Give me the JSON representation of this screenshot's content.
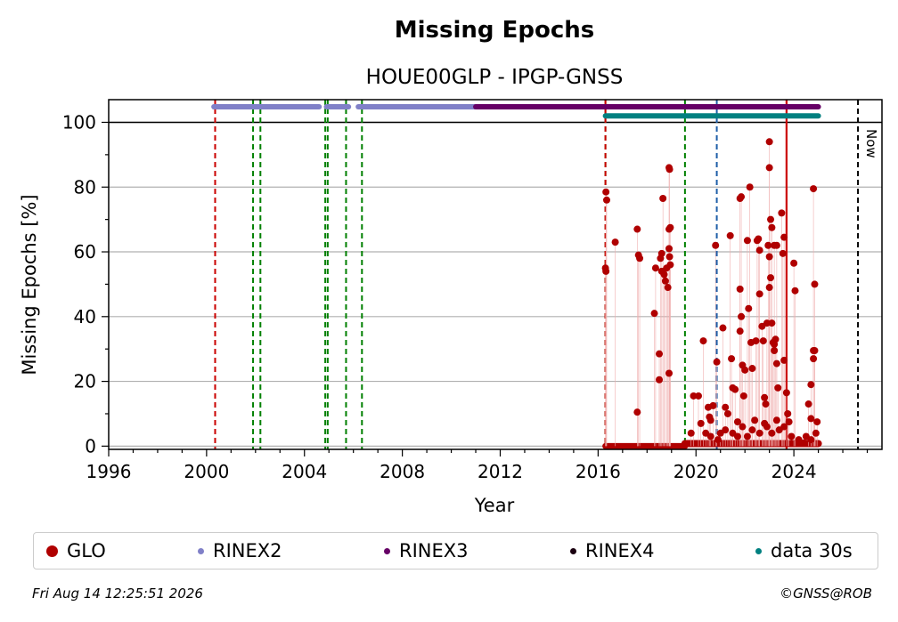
{
  "chart_data": {
    "type": "scatter",
    "title": "Missing Epochs",
    "subtitle": "HOUE00GLP - IPGP-GNSS",
    "xlabel": "Year",
    "ylabel": "Missing Epochs [%]",
    "xlim": [
      1996,
      2027.6
    ],
    "ylim": [
      -1,
      107
    ],
    "x_ticks": [
      "1996",
      "2000",
      "2004",
      "2008",
      "2012",
      "2016",
      "2020",
      "2024"
    ],
    "y_ticks": [
      "0",
      "20",
      "40",
      "60",
      "80",
      "100"
    ],
    "grid": "horizontal",
    "legend_placement": "bottom",
    "now_label": "Now",
    "now_year": 2026.62,
    "reference_line": 100,
    "event_lines": [
      {
        "x": 2000.35,
        "color": "#008000"
      },
      {
        "x": 2000.35,
        "color": "#cc0000"
      },
      {
        "x": 2001.9,
        "color": "#008000"
      },
      {
        "x": 2002.2,
        "color": "#008000"
      },
      {
        "x": 2004.85,
        "color": "#008000"
      },
      {
        "x": 2004.95,
        "color": "#008000"
      },
      {
        "x": 2005.7,
        "color": "#008000"
      },
      {
        "x": 2006.35,
        "color": "#008000"
      },
      {
        "x": 2016.3,
        "color": "#008000"
      },
      {
        "x": 2016.3,
        "color": "#cc0000"
      },
      {
        "x": 2019.55,
        "color": "#008000"
      },
      {
        "x": 2020.85,
        "color": "#1f5fa8"
      }
    ],
    "solid_event_lines": [
      {
        "x": 2023.7,
        "color": "#cc0000"
      }
    ],
    "availability_bars": [
      {
        "name": "RINEX2",
        "y": 104.8,
        "color": "#8080c8",
        "segments": [
          [
            2000.3,
            2004.6
          ],
          [
            2004.9,
            2005.8
          ],
          [
            2006.2,
            2011.0
          ]
        ]
      },
      {
        "name": "RINEX3",
        "y": 104.8,
        "color": "#660066",
        "segments": [
          [
            2011.0,
            2025.0
          ]
        ]
      },
      {
        "name": "data 30s",
        "y": 102.0,
        "color": "#008080",
        "segments": [
          [
            2016.3,
            2025.0
          ]
        ]
      }
    ],
    "series": [
      {
        "name": "GLO",
        "color": "#b00000",
        "points": [
          [
            2016.32,
            78.5
          ],
          [
            2016.35,
            76
          ],
          [
            2016.3,
            55
          ],
          [
            2016.32,
            54
          ],
          [
            2016.7,
            63
          ],
          [
            2017.6,
            67
          ],
          [
            2017.65,
            59
          ],
          [
            2017.7,
            58
          ],
          [
            2017.6,
            10.5
          ],
          [
            2018.3,
            41
          ],
          [
            2018.35,
            55
          ],
          [
            2018.5,
            28.5
          ],
          [
            2018.5,
            20.5
          ],
          [
            2018.55,
            58
          ],
          [
            2018.6,
            59.5
          ],
          [
            2018.6,
            54
          ],
          [
            2018.65,
            76.5
          ],
          [
            2018.7,
            53
          ],
          [
            2018.75,
            51
          ],
          [
            2018.8,
            55
          ],
          [
            2018.85,
            49
          ],
          [
            2018.9,
            86
          ],
          [
            2018.92,
            85.5
          ],
          [
            2018.9,
            67
          ],
          [
            2018.95,
            67.5
          ],
          [
            2018.9,
            61
          ],
          [
            2018.92,
            58.5
          ],
          [
            2018.95,
            56
          ],
          [
            2018.9,
            22.5
          ],
          [
            2019.8,
            4
          ],
          [
            2019.9,
            15.5
          ],
          [
            2020.1,
            15.5
          ],
          [
            2020.2,
            7
          ],
          [
            2020.3,
            32.5
          ],
          [
            2020.4,
            4
          ],
          [
            2020.5,
            12
          ],
          [
            2020.55,
            9
          ],
          [
            2020.6,
            8
          ],
          [
            2020.7,
            12.5
          ],
          [
            2020.8,
            62
          ],
          [
            2020.85,
            26
          ],
          [
            2021.0,
            4
          ],
          [
            2021.1,
            36.5
          ],
          [
            2021.2,
            12
          ],
          [
            2021.3,
            10
          ],
          [
            2021.4,
            65
          ],
          [
            2021.45,
            27
          ],
          [
            2021.5,
            18
          ],
          [
            2021.6,
            17.5
          ],
          [
            2021.7,
            7.5
          ],
          [
            2021.8,
            76.5
          ],
          [
            2021.85,
            77
          ],
          [
            2021.8,
            48.5
          ],
          [
            2021.85,
            40
          ],
          [
            2021.8,
            35.5
          ],
          [
            2021.9,
            25
          ],
          [
            2021.95,
            15.5
          ],
          [
            2022.0,
            23.5
          ],
          [
            2022.1,
            63.5
          ],
          [
            2022.15,
            42.5
          ],
          [
            2022.2,
            80
          ],
          [
            2022.25,
            32
          ],
          [
            2022.3,
            24
          ],
          [
            2022.4,
            8
          ],
          [
            2022.45,
            32.5
          ],
          [
            2022.5,
            63.5
          ],
          [
            2022.55,
            64
          ],
          [
            2022.6,
            60.5
          ],
          [
            2022.6,
            47
          ],
          [
            2022.7,
            37
          ],
          [
            2022.75,
            32.5
          ],
          [
            2022.8,
            15
          ],
          [
            2022.85,
            13
          ],
          [
            2022.9,
            38
          ],
          [
            2022.95,
            62
          ],
          [
            2023.0,
            94
          ],
          [
            2023.0,
            86
          ],
          [
            2023.05,
            70
          ],
          [
            2023.1,
            67.5
          ],
          [
            2023.0,
            58.5
          ],
          [
            2023.05,
            52
          ],
          [
            2023.0,
            49
          ],
          [
            2023.1,
            38
          ],
          [
            2023.15,
            32
          ],
          [
            2023.2,
            31.5
          ],
          [
            2023.2,
            29.5
          ],
          [
            2023.25,
            33
          ],
          [
            2023.3,
            25.5
          ],
          [
            2023.35,
            18
          ],
          [
            2023.2,
            62
          ],
          [
            2023.3,
            62
          ],
          [
            2023.5,
            72
          ],
          [
            2023.6,
            64.5
          ],
          [
            2023.55,
            59.5
          ],
          [
            2023.6,
            26.5
          ],
          [
            2023.7,
            16.5
          ],
          [
            2023.75,
            10
          ],
          [
            2023.8,
            7.5
          ],
          [
            2024.05,
            48
          ],
          [
            2024.0,
            56.5
          ],
          [
            2024.8,
            79.5
          ],
          [
            2024.85,
            50
          ],
          [
            2024.8,
            29.5
          ],
          [
            2024.85,
            29.5
          ],
          [
            2024.8,
            27
          ],
          [
            2024.7,
            19
          ],
          [
            2024.6,
            13
          ],
          [
            2024.7,
            8.5
          ],
          [
            2024.95,
            7.5
          ],
          [
            2021.5,
            4
          ],
          [
            2021.7,
            3
          ],
          [
            2022.3,
            5
          ],
          [
            2022.6,
            4
          ],
          [
            2022.9,
            6
          ],
          [
            2023.1,
            4
          ],
          [
            2023.4,
            5
          ],
          [
            2023.9,
            3
          ],
          [
            2024.2,
            2
          ],
          [
            2024.5,
            3
          ],
          [
            2024.9,
            4
          ],
          [
            2020.6,
            3
          ],
          [
            2020.9,
            2
          ],
          [
            2021.2,
            5
          ],
          [
            2021.9,
            6
          ],
          [
            2022.1,
            3
          ],
          [
            2022.8,
            7
          ],
          [
            2023.3,
            8
          ],
          [
            2023.6,
            6
          ],
          [
            2024.4,
            1
          ],
          [
            2024.7,
            2
          ]
        ]
      }
    ]
  },
  "legend": {
    "items": [
      {
        "label": "GLO",
        "color": "#b00000",
        "size": 13
      },
      {
        "label": "RINEX2",
        "color": "#8080c8",
        "size": 7
      },
      {
        "label": "RINEX3",
        "color": "#660066",
        "size": 7
      },
      {
        "label": "RINEX4",
        "color": "#1a0010",
        "size": 7
      },
      {
        "label": "data 30s",
        "color": "#008080",
        "size": 7
      }
    ]
  },
  "footer": {
    "timestamp": "Fri Aug 14 12:25:51 2026",
    "copyright": "©GNSS@ROB"
  }
}
